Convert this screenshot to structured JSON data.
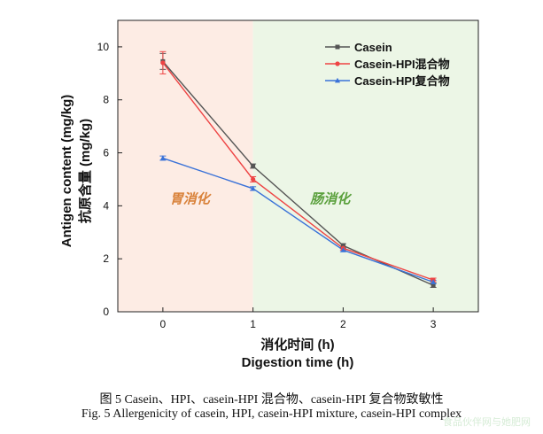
{
  "chart_data": {
    "type": "line",
    "x": [
      0,
      1,
      2,
      3
    ],
    "xlabel_cn": "消化时间 (h)",
    "xlabel_en": "Digestion time (h)",
    "ylabel_en": "Antigen content (mg/kg)",
    "ylabel_cn": "抗原含量 (mg/kg)",
    "xlim": [
      -0.5,
      3.5
    ],
    "ylim": [
      0,
      11
    ],
    "xticks": [
      0,
      1,
      2,
      3
    ],
    "yticks": [
      0,
      2,
      4,
      6,
      8,
      10
    ],
    "legend_position": "top-right",
    "regions": [
      {
        "label": "胃消化",
        "x_range": [
          -0.5,
          1
        ],
        "color": "#fdece4",
        "label_color": "#d9823a"
      },
      {
        "label": "肠消化",
        "x_range": [
          1,
          3.5
        ],
        "color": "#ecf6e6",
        "label_color": "#5aa03c"
      }
    ],
    "series": [
      {
        "name": "Casein",
        "color": "#555555",
        "marker": "square",
        "values": [
          9.45,
          5.5,
          2.5,
          1.0
        ],
        "errors": [
          0.3,
          0.08,
          0.07,
          0.08
        ]
      },
      {
        "name": "Casein-HPI混合物",
        "color": "#ee4444",
        "marker": "circle",
        "values": [
          9.4,
          5.0,
          2.4,
          1.2
        ],
        "errors": [
          0.42,
          0.1,
          0.07,
          0.07
        ]
      },
      {
        "name": "Casein-HPI复合物",
        "color": "#3a72d8",
        "marker": "triangle",
        "values": [
          5.8,
          4.65,
          2.33,
          1.12
        ],
        "errors": [
          0.08,
          0.07,
          0.06,
          0.07
        ]
      }
    ]
  },
  "caption": {
    "cn": "图 5 Casein、HPI、casein-HPI 混合物、casein-HPI 复合物致敏性",
    "en": "Fig. 5 Allergenicity of casein, HPI, casein-HPI mixture, casein-HPI complex"
  },
  "watermark": "食品伙伴网与她肥网"
}
